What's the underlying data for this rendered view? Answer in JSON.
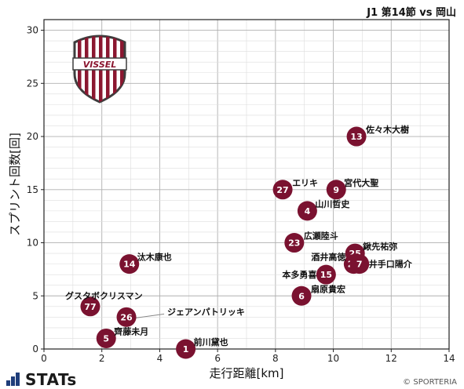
{
  "header": {
    "match_title": "J1 第14節 vs 岡山"
  },
  "footer": {
    "logo_text": "STATs",
    "copyright": "© SPORTERIA"
  },
  "team_logo": {
    "text": "VISSEL",
    "colors": {
      "dark": "#3d3d3d",
      "crimson": "#8b1730"
    }
  },
  "colors": {
    "marker": "#7a1230",
    "marker_text": "#ffffff",
    "grid": "#bbbbbb",
    "leader": "#888888"
  },
  "chart_data": {
    "type": "scatter",
    "title": "",
    "xlabel": "走行距離[km]",
    "ylabel": "スプリント回数[回]",
    "xlim": [
      0,
      14
    ],
    "ylim": [
      0,
      31
    ],
    "xticks": [
      0,
      2,
      4,
      6,
      8,
      10,
      12,
      14
    ],
    "yticks": [
      0,
      5,
      10,
      15,
      20,
      25,
      30
    ],
    "grid": true,
    "points": [
      {
        "number": "13",
        "name": "佐々木大樹",
        "x": 10.8,
        "y": 20
      },
      {
        "number": "27",
        "name": "エリキ",
        "x": 8.25,
        "y": 15
      },
      {
        "number": "9",
        "name": "宮代大聖",
        "x": 10.1,
        "y": 15
      },
      {
        "number": "4",
        "name": "山川哲史",
        "x": 9.1,
        "y": 13
      },
      {
        "number": "23",
        "name": "広瀬陸斗",
        "x": 8.65,
        "y": 10
      },
      {
        "number": "25",
        "name": "鍬先祐弥",
        "x": 10.75,
        "y": 9
      },
      {
        "number": "24",
        "name": "酒井高徳",
        "x": 10.7,
        "y": 8
      },
      {
        "number": "7",
        "name": "井手口陽介",
        "x": 10.9,
        "y": 8
      },
      {
        "number": "15",
        "name": "本多勇喜",
        "x": 9.75,
        "y": 7
      },
      {
        "number": "6",
        "name": "扇原貴宏",
        "x": 8.9,
        "y": 5
      },
      {
        "number": "14",
        "name": "汰木康也",
        "x": 2.95,
        "y": 8
      },
      {
        "number": "77",
        "name": "グスタボクリスマン",
        "x": 1.6,
        "y": 4
      },
      {
        "number": "26",
        "name": "ジェアンパトリッキ",
        "x": 2.85,
        "y": 3
      },
      {
        "number": "5",
        "name": "齊藤未月",
        "x": 2.15,
        "y": 1
      },
      {
        "number": "1",
        "name": "前川黛也",
        "x": 4.9,
        "y": 0
      }
    ]
  }
}
